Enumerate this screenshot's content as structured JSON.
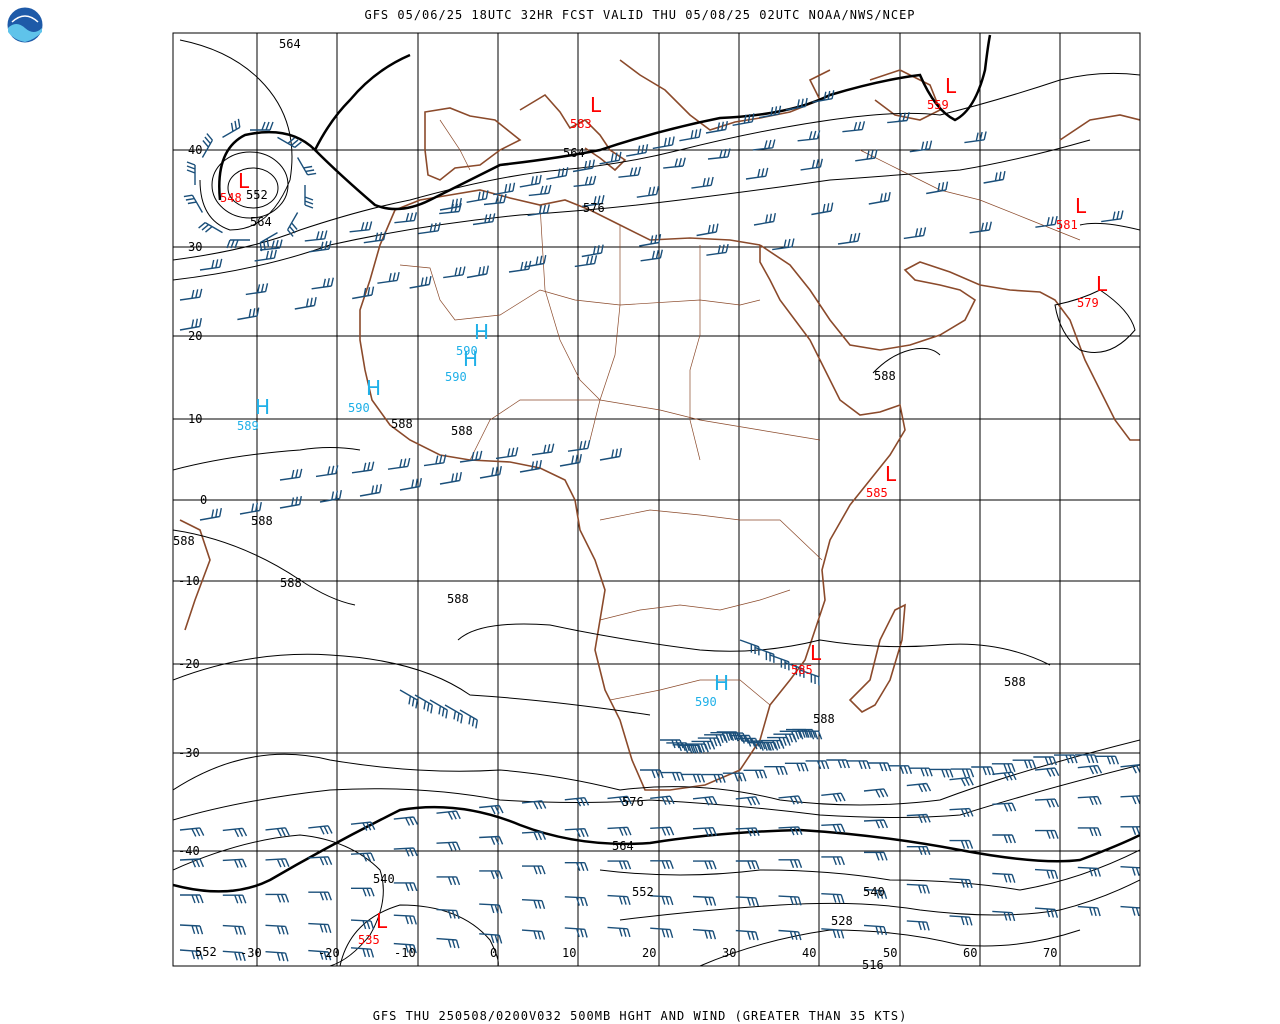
{
  "header": {
    "title": "GFS 05/06/25 18UTC 32HR FCST VALID THU 05/08/25 02UTC NOAA/NWS/NCEP",
    "logo_text": "NOAA"
  },
  "footer": {
    "title": "GFS THU 250508/0200V032 500MB HGHT AND WIND (GREATER THAN 35 KTS)"
  },
  "colors": {
    "background": "#ffffff",
    "grid": "#000000",
    "coast": "#8b4a2b",
    "barb": "#1a4f7a",
    "low": "#ff0000",
    "high": "#1fb0e8",
    "contour": "#000000"
  },
  "map": {
    "lat_labels": [
      "40",
      "30",
      "20",
      "10",
      "0",
      "-10",
      "-20",
      "-30",
      "-40"
    ],
    "lon_labels": [
      "-30",
      "-20",
      "-10",
      "0",
      "10",
      "20",
      "30",
      "40",
      "50",
      "60",
      "70"
    ],
    "contour_labels": [
      {
        "id": "c564a",
        "text": "564"
      },
      {
        "id": "c552a",
        "text": "552"
      },
      {
        "id": "c564b",
        "text": "564"
      },
      {
        "id": "c564c",
        "text": "564"
      },
      {
        "id": "c576a",
        "text": "576"
      },
      {
        "id": "c588a",
        "text": "588"
      },
      {
        "id": "c588b",
        "text": "588"
      },
      {
        "id": "c588c",
        "text": "588"
      },
      {
        "id": "c588d",
        "text": "588"
      },
      {
        "id": "c588e",
        "text": "588"
      },
      {
        "id": "c588f",
        "text": "588"
      },
      {
        "id": "c588g",
        "text": "588"
      },
      {
        "id": "c588h",
        "text": "588"
      },
      {
        "id": "c588i",
        "text": "588"
      },
      {
        "id": "c576b",
        "text": "576"
      },
      {
        "id": "c564d",
        "text": "564"
      },
      {
        "id": "c552b",
        "text": "552"
      },
      {
        "id": "c540a",
        "text": "540"
      },
      {
        "id": "c540b",
        "text": "540"
      },
      {
        "id": "c528",
        "text": "528"
      },
      {
        "id": "c516",
        "text": "516"
      },
      {
        "id": "c552c",
        "text": "552"
      }
    ],
    "lows": [
      {
        "id": "l1",
        "symbol": "L",
        "value": "548"
      },
      {
        "id": "l2",
        "symbol": "L",
        "value": "583"
      },
      {
        "id": "l3",
        "symbol": "L",
        "value": "559"
      },
      {
        "id": "l4",
        "symbol": "L",
        "value": "581"
      },
      {
        "id": "l5",
        "symbol": "L",
        "value": "579"
      },
      {
        "id": "l6",
        "symbol": "L",
        "value": "585"
      },
      {
        "id": "l7",
        "symbol": "L",
        "value": "585"
      },
      {
        "id": "l8",
        "symbol": "L",
        "value": "535"
      }
    ],
    "highs": [
      {
        "id": "h1",
        "symbol": "H",
        "value": "589"
      },
      {
        "id": "h2",
        "symbol": "H",
        "value": "590"
      },
      {
        "id": "h3",
        "symbol": "H",
        "value": "590"
      },
      {
        "id": "h4",
        "symbol": "H",
        "value": "590"
      },
      {
        "id": "h5",
        "symbol": "H",
        "value": "590"
      }
    ]
  }
}
